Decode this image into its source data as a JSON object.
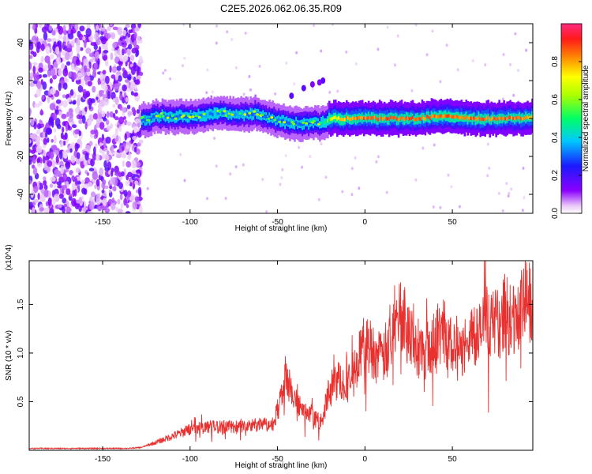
{
  "title": "C2E5.2026.062.06.35.R09",
  "chart_data": [
    {
      "type": "heatmap",
      "title": "C2E5.2026.062.06.35.R09",
      "xlabel": "Height of straight line (km)",
      "ylabel": "Frequency (Hz)",
      "xlim": [
        -192,
        96
      ],
      "ylim": [
        -50,
        50
      ],
      "xticks": [
        -150,
        -100,
        -50,
        0,
        50
      ],
      "xtick_labels": [
        "-150",
        "-100",
        "-50",
        "0",
        "50"
      ],
      "yticks": [
        -40,
        -20,
        0,
        20,
        40
      ],
      "ytick_labels": [
        "-40",
        "-20",
        "0",
        "20",
        "40"
      ],
      "colorbar": {
        "label": "Normalized spectral amplitude",
        "range": [
          0,
          1
        ],
        "ticks": [
          0.0,
          0.2,
          0.4,
          0.6,
          0.8
        ],
        "tick_labels": [
          "0.0",
          "0.2",
          "0.4",
          "0.6",
          "0.8"
        ]
      },
      "noise_region_x": [
        -192,
        -128
      ],
      "ridge": {
        "x": [
          -128,
          -120,
          -110,
          -100,
          -90,
          -80,
          -70,
          -62,
          -58,
          -50,
          -44,
          -38,
          -30,
          -26,
          -20,
          -10,
          0,
          10,
          20,
          30,
          40,
          50,
          60,
          70,
          80,
          90,
          96
        ],
        "frequency": [
          -1,
          1,
          1,
          1,
          2,
          3,
          2,
          3,
          1,
          -1,
          -2,
          -3,
          -2,
          -3,
          0,
          0,
          0,
          0,
          0,
          0,
          1,
          1,
          0,
          0,
          0,
          0,
          1
        ],
        "amplitude": [
          0.3,
          0.32,
          0.33,
          0.35,
          0.4,
          0.42,
          0.4,
          0.38,
          0.35,
          0.33,
          0.35,
          0.33,
          0.32,
          0.35,
          0.7,
          0.85,
          0.9,
          0.9,
          0.92,
          0.9,
          0.88,
          0.92,
          0.9,
          0.88,
          0.9,
          0.88,
          0.8
        ]
      }
    },
    {
      "type": "line",
      "xlabel": "Height of straight line (km)",
      "ylabel": "SNR (10 * v/v)",
      "y_multiplier": "(x10^4)",
      "xlim": [
        -192,
        96
      ],
      "ylim": [
        0,
        1.95
      ],
      "xticks": [
        -150,
        -100,
        -50,
        0,
        50
      ],
      "xtick_labels": [
        "-150",
        "-100",
        "-50",
        "0",
        "50"
      ],
      "yticks": [
        0.5,
        1.0,
        1.5
      ],
      "ytick_labels": [
        "0.5",
        "1.0",
        "1.5"
      ],
      "series": [
        {
          "name": "SNR",
          "color": "#e8312f",
          "x": [
            -192,
            -170,
            -150,
            -135,
            -128,
            -120,
            -110,
            -100,
            -90,
            -80,
            -70,
            -60,
            -52,
            -48,
            -45,
            -40,
            -35,
            -30,
            -25,
            -20,
            -15,
            -10,
            -5,
            0,
            5,
            10,
            15,
            20,
            22,
            25,
            30,
            35,
            40,
            45,
            50,
            55,
            60,
            65,
            70,
            75,
            80,
            85,
            90,
            92,
            96
          ],
          "y": [
            0.02,
            0.02,
            0.02,
            0.02,
            0.03,
            0.08,
            0.15,
            0.22,
            0.25,
            0.25,
            0.25,
            0.27,
            0.28,
            0.6,
            0.75,
            0.55,
            0.4,
            0.35,
            0.3,
            0.65,
            0.75,
            0.7,
            0.9,
            1.15,
            1.05,
            0.95,
            1.25,
            1.4,
            1.5,
            1.25,
            1.05,
            1.05,
            1.2,
            1.25,
            1.05,
            1.0,
            1.3,
            1.2,
            1.4,
            1.3,
            1.45,
            1.35,
            1.5,
            1.65,
            1.45
          ]
        }
      ]
    }
  ]
}
